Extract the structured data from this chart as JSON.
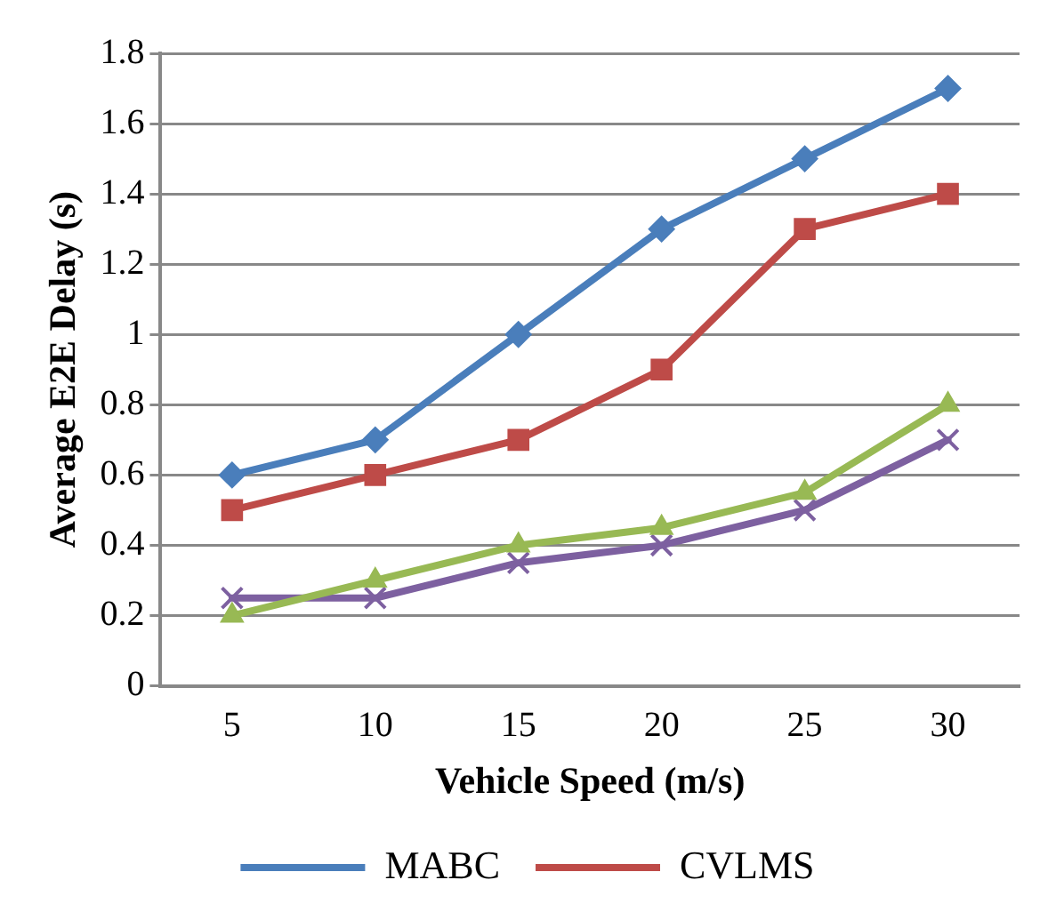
{
  "chart_data": {
    "type": "line",
    "xlabel": "Vehicle Speed (m/s)",
    "ylabel": "Average E2E Delay (s)",
    "categories": [
      "5",
      "10",
      "15",
      "20",
      "25",
      "30"
    ],
    "series": [
      {
        "name": "MABC",
        "color": "#4a7ebb",
        "marker": "diamond",
        "values": [
          0.6,
          0.7,
          1.0,
          1.3,
          1.5,
          1.7
        ]
      },
      {
        "name": "CVLMS",
        "color": "#be4b48",
        "marker": "square",
        "values": [
          0.5,
          0.6,
          0.7,
          0.9,
          1.3,
          1.4
        ]
      },
      {
        "color": "#98b954",
        "marker": "triangle",
        "values": [
          0.2,
          0.3,
          0.4,
          0.45,
          0.55,
          0.8
        ]
      },
      {
        "color": "#7d60a0",
        "marker": "cross",
        "values": [
          0.25,
          0.25,
          0.35,
          0.4,
          0.5,
          0.7
        ]
      }
    ],
    "ylim": [
      0,
      1.8
    ],
    "yticks": [
      0,
      0.2,
      0.4,
      0.6,
      0.8,
      1,
      1.2,
      1.4,
      1.6,
      1.8
    ],
    "grid": "y",
    "legend": "bottom"
  }
}
